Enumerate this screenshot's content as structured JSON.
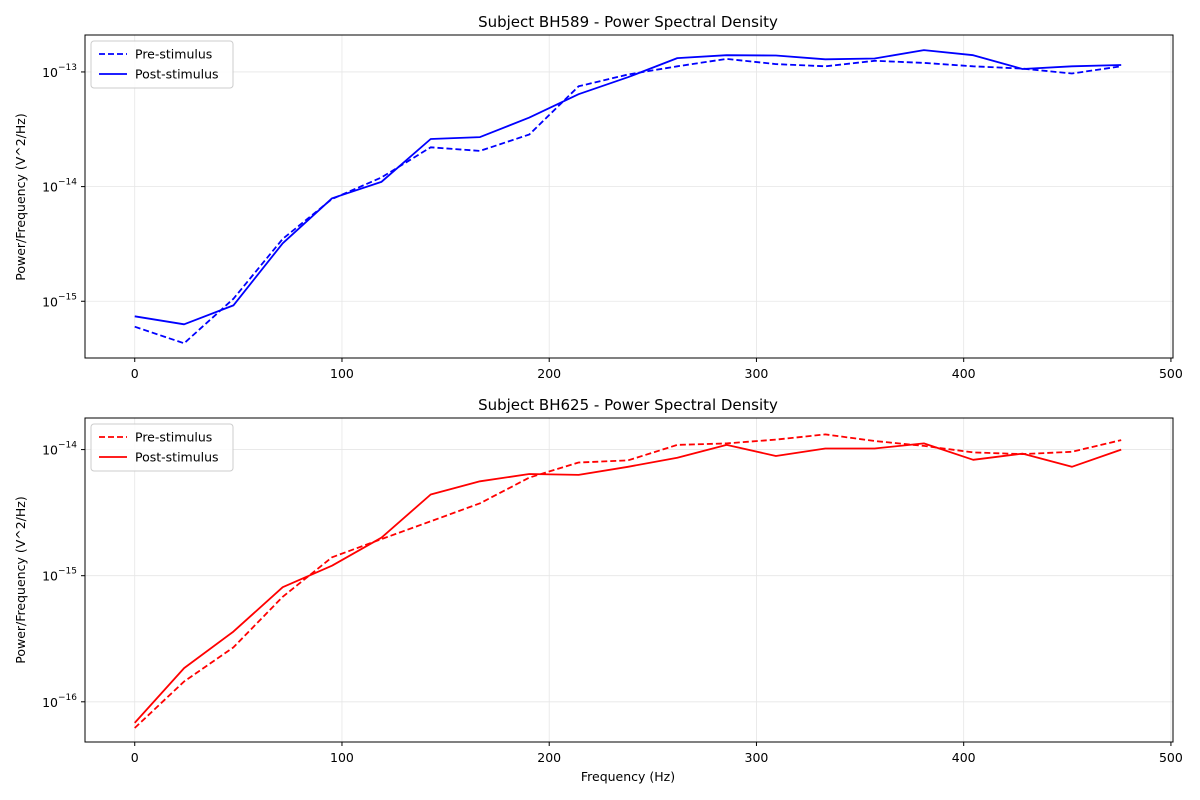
{
  "chart_data": [
    {
      "type": "line",
      "title": "Subject BH589 - Power Spectral Density",
      "xlabel": "",
      "ylabel": "Power/Frequency (V^2/Hz)",
      "xlim": [
        -24,
        501
      ],
      "ylim": [
        3.2e-16,
        2.1e-13
      ],
      "yscale": "log",
      "x_ticks": [
        0,
        100,
        200,
        300,
        400,
        500
      ],
      "y_ticks": [
        {
          "base": "10",
          "exp": "−15",
          "value": 1e-15
        },
        {
          "base": "10",
          "exp": "−14",
          "value": 1e-14
        },
        {
          "base": "10",
          "exp": "−13",
          "value": 1e-13
        }
      ],
      "grid": true,
      "legend_position": "upper-left",
      "x": [
        0,
        23.8,
        47.6,
        71.4,
        95.2,
        119,
        142.8,
        166.6,
        190.4,
        214.2,
        238,
        261.8,
        285.6,
        309.4,
        333.2,
        357,
        380.8,
        404.6,
        428.4,
        452.2,
        476
      ],
      "series": [
        {
          "name": "Pre-stimulus",
          "color": "#0000ff",
          "dash": "dashed",
          "values": [
            6e-16,
            4.3e-16,
            1.05e-15,
            3.5e-15,
            7.8e-15,
            1.2e-14,
            2.2e-14,
            2.05e-14,
            2.85e-14,
            7.5e-14,
            9.5e-14,
            1.12e-13,
            1.3e-13,
            1.17e-13,
            1.12e-13,
            1.25e-13,
            1.2e-13,
            1.12e-13,
            1.07e-13,
            9.7e-14,
            1.12e-13
          ]
        },
        {
          "name": "Post-stimulus",
          "color": "#0000ff",
          "dash": "solid",
          "values": [
            7.4e-16,
            6.3e-16,
            9.2e-16,
            3.2e-15,
            7.9e-15,
            1.1e-14,
            2.6e-14,
            2.7e-14,
            4e-14,
            6.4e-14,
            9e-14,
            1.32e-13,
            1.4e-13,
            1.39e-13,
            1.29e-13,
            1.31e-13,
            1.55e-13,
            1.4e-13,
            1.06e-13,
            1.12e-13,
            1.15e-13
          ]
        }
      ]
    },
    {
      "type": "line",
      "title": "Subject BH625 - Power Spectral Density",
      "xlabel": "Frequency (Hz)",
      "ylabel": "Power/Frequency (V^2/Hz)",
      "xlim": [
        -24,
        501
      ],
      "ylim": [
        4.8e-17,
        1.78e-14
      ],
      "yscale": "log",
      "x_ticks": [
        0,
        100,
        200,
        300,
        400,
        500
      ],
      "y_ticks": [
        {
          "base": "10",
          "exp": "−16",
          "value": 1e-16
        },
        {
          "base": "10",
          "exp": "−15",
          "value": 1e-15
        },
        {
          "base": "10",
          "exp": "−14",
          "value": 1e-14
        }
      ],
      "grid": true,
      "legend_position": "upper-left",
      "x": [
        0,
        23.8,
        47.6,
        71.4,
        95.2,
        119,
        142.8,
        166.6,
        190.4,
        214.2,
        238,
        261.8,
        285.6,
        309.4,
        333.2,
        357,
        380.8,
        404.6,
        428.4,
        452.2,
        476
      ],
      "series": [
        {
          "name": "Pre-stimulus",
          "color": "#ff0000",
          "dash": "dashed",
          "values": [
            6.2e-17,
            1.45e-16,
            2.7e-16,
            6.8e-16,
            1.4e-15,
            1.95e-15,
            2.7e-15,
            3.75e-15,
            6e-15,
            7.9e-15,
            8.2e-15,
            1.09e-14,
            1.12e-14,
            1.2e-14,
            1.32e-14,
            1.17e-14,
            1.07e-14,
            9.5e-15,
            9.2e-15,
            9.6e-15,
            1.19e-14
          ]
        },
        {
          "name": "Post-stimulus",
          "color": "#ff0000",
          "dash": "solid",
          "values": [
            6.8e-17,
            1.85e-16,
            3.6e-16,
            8.1e-16,
            1.2e-15,
            2e-15,
            4.4e-15,
            5.6e-15,
            6.4e-15,
            6.3e-15,
            7.3e-15,
            8.6e-15,
            1.09e-14,
            8.9e-15,
            1.02e-14,
            1.02e-14,
            1.12e-14,
            8.3e-15,
            9.3e-15,
            7.3e-15,
            1e-14
          ]
        }
      ]
    }
  ]
}
